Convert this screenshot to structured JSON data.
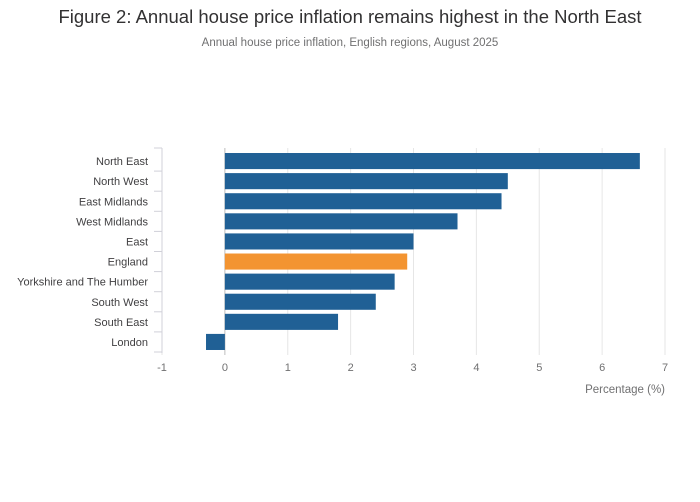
{
  "chart_data": {
    "type": "bar",
    "orientation": "horizontal",
    "title": "Figure 2: Annual house price inflation remains highest in the North East",
    "subtitle": "Annual house price inflation, English regions, August 2025",
    "categories": [
      "North East",
      "North West",
      "East Midlands",
      "West Midlands",
      "East",
      "England",
      "Yorkshire and The Humber",
      "South West",
      "South East",
      "London"
    ],
    "values": [
      6.6,
      4.5,
      4.4,
      3.7,
      3.0,
      2.9,
      2.7,
      2.4,
      1.8,
      -0.3
    ],
    "highlight_category": "England",
    "xlabel": "Percentage (%)",
    "ylabel": "",
    "xlim": [
      -1,
      7
    ],
    "xticks": [
      -1,
      0,
      1,
      2,
      3,
      4,
      5,
      6,
      7
    ],
    "grid": true,
    "legend": "none",
    "colors": {
      "bar": "#206095",
      "highlight": "#f39431",
      "grid": "#e6e6e6",
      "axis_line": "#d0d0d8",
      "zero_line": "#bdbdbd"
    }
  }
}
